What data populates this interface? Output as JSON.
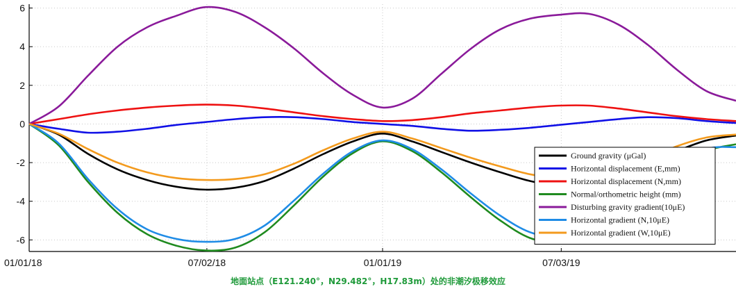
{
  "chart_data": {
    "type": "line",
    "xlabel": "",
    "ylabel": "",
    "x": [
      "01/01/18",
      "02/01/18",
      "03/01/18",
      "04/01/18",
      "05/01/18",
      "06/01/18",
      "07/01/18",
      "08/01/18",
      "09/01/18",
      "10/01/18",
      "11/01/18",
      "12/01/18",
      "01/01/19",
      "02/01/19",
      "03/01/19",
      "04/01/19",
      "05/01/19",
      "06/01/19",
      "07/01/19",
      "08/01/19",
      "09/01/19",
      "10/01/19",
      "11/01/19",
      "12/01/19",
      "01/01/20"
    ],
    "x_ticks": [
      "01/01/18",
      "07/02/18",
      "01/01/19",
      "07/03/19"
    ],
    "y_ticks": [
      "6",
      "4",
      "2",
      "0",
      "-2",
      "-4",
      "-6"
    ],
    "ylim": [
      -6.6,
      6.2
    ],
    "grid": true,
    "legend_position": "bottom-right",
    "series": [
      {
        "name": "Ground gravity (μGal)",
        "color": "#000000",
        "values": [
          0.0,
          -0.55,
          -1.55,
          -2.35,
          -2.9,
          -3.25,
          -3.4,
          -3.3,
          -2.95,
          -2.3,
          -1.55,
          -0.9,
          -0.5,
          -0.9,
          -1.45,
          -2.0,
          -2.5,
          -2.95,
          -3.2,
          -3.05,
          -2.65,
          -2.05,
          -1.4,
          -0.85,
          -0.6
        ]
      },
      {
        "name": "Horizontal displacement (E,mm)",
        "color": "#1010e6",
        "values": [
          0.0,
          -0.25,
          -0.45,
          -0.4,
          -0.25,
          -0.05,
          0.1,
          0.25,
          0.35,
          0.35,
          0.25,
          0.1,
          0.0,
          -0.1,
          -0.25,
          -0.35,
          -0.3,
          -0.2,
          -0.05,
          0.1,
          0.25,
          0.35,
          0.3,
          0.15,
          0.05
        ]
      },
      {
        "name": "Horizontal displacement (N,mm)",
        "color": "#ee1111",
        "values": [
          0.0,
          0.25,
          0.5,
          0.7,
          0.85,
          0.95,
          1.0,
          0.95,
          0.8,
          0.6,
          0.4,
          0.25,
          0.15,
          0.2,
          0.35,
          0.55,
          0.7,
          0.85,
          0.95,
          0.95,
          0.8,
          0.6,
          0.4,
          0.25,
          0.15
        ]
      },
      {
        "name": "Normal/orthometric height (mm)",
        "color": "#1f8a1f",
        "values": [
          0.0,
          -1.1,
          -3.0,
          -4.6,
          -5.7,
          -6.3,
          -6.55,
          -6.4,
          -5.6,
          -4.2,
          -2.7,
          -1.5,
          -0.9,
          -1.4,
          -2.5,
          -3.8,
          -5.0,
          -5.9,
          -6.15,
          -6.05,
          -5.2,
          -3.8,
          -2.4,
          -1.4,
          -1.05
        ]
      },
      {
        "name": "Disturbing gravity gradient(10μE)",
        "color": "#8a1a9a",
        "values": [
          0.0,
          0.9,
          2.5,
          4.0,
          5.0,
          5.6,
          6.05,
          5.8,
          5.0,
          3.9,
          2.6,
          1.5,
          0.85,
          1.3,
          2.6,
          3.9,
          4.9,
          5.45,
          5.65,
          5.7,
          5.15,
          4.1,
          2.8,
          1.7,
          1.2
        ]
      },
      {
        "name": "Horizontal gradient (N,10μE)",
        "color": "#1f8ce6",
        "values": [
          0.0,
          -1.0,
          -2.85,
          -4.4,
          -5.45,
          -5.95,
          -6.1,
          -5.95,
          -5.25,
          -3.95,
          -2.55,
          -1.4,
          -0.85,
          -1.3,
          -2.35,
          -3.6,
          -4.75,
          -5.6,
          -5.9,
          -5.7,
          -4.9,
          -3.6,
          -2.3,
          -1.3,
          -1.2
        ]
      },
      {
        "name": "Horizontal gradient (W,10μE)",
        "color": "#f39a1d",
        "values": [
          0.0,
          -0.5,
          -1.3,
          -2.0,
          -2.5,
          -2.8,
          -2.9,
          -2.85,
          -2.6,
          -2.05,
          -1.35,
          -0.75,
          -0.4,
          -0.75,
          -1.25,
          -1.75,
          -2.2,
          -2.6,
          -2.8,
          -2.7,
          -2.35,
          -1.8,
          -1.15,
          -0.7,
          -0.55
        ]
      }
    ]
  },
  "caption": "地面站点（E121.240°，N29.482°，H17.83m）处的非潮汐极移效应"
}
